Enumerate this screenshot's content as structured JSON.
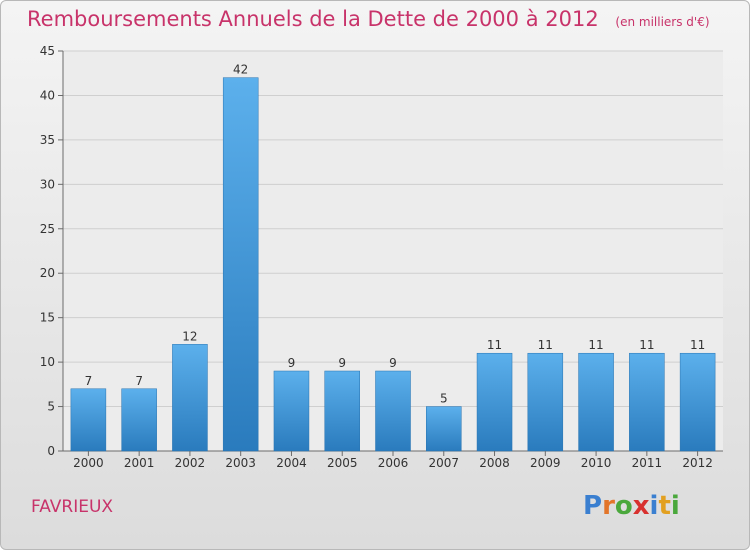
{
  "title": "Remboursements Annuels de la Dette de 2000 à 2012",
  "unit": "(en milliers d'€)",
  "commune": "FAVRIEUX",
  "brand": {
    "letters": [
      "P",
      "r",
      "o",
      "x",
      "i",
      "t",
      "i"
    ],
    "colors": [
      "#3a7fd0",
      "#e2752a",
      "#4aa83c",
      "#d8312f",
      "#3a7fd0",
      "#e2a020",
      "#4aa83c"
    ]
  },
  "colors": {
    "bar_light": "#5cb0ec",
    "bar_dark": "#2a7bbd",
    "title": "#c8336a",
    "grid": "#cfcfcf",
    "axis": "#6b6b6b"
  },
  "chart_data": {
    "type": "bar",
    "title": "Remboursements Annuels de la Dette de 2000 à 2012",
    "categories": [
      "2000",
      "2001",
      "2002",
      "2003",
      "2004",
      "2005",
      "2006",
      "2007",
      "2008",
      "2009",
      "2010",
      "2011",
      "2012"
    ],
    "values": [
      7,
      7,
      12,
      42,
      9,
      9,
      9,
      5,
      11,
      11,
      11,
      11,
      11
    ],
    "ylim": [
      0,
      45
    ],
    "yticks": [
      0,
      5,
      10,
      15,
      20,
      25,
      30,
      35,
      40,
      45
    ],
    "grid": true
  }
}
